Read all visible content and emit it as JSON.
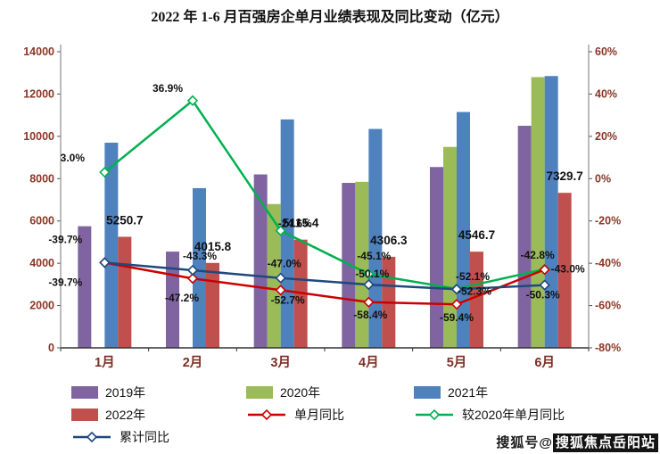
{
  "chart_data": {
    "type": "bar",
    "title": "2022 年 1-6 月百强房企单月业绩表现及同比变动（亿元）",
    "categories": [
      "1月",
      "2月",
      "3月",
      "4月",
      "5月",
      "6月"
    ],
    "bar_series": [
      {
        "name": "2019年",
        "color": "#8064A2",
        "values": [
          5750,
          4550,
          8200,
          7800,
          8550,
          10500
        ]
      },
      {
        "name": "2020年",
        "color": "#9BBB59",
        "values": [
          null,
          null,
          6800,
          7850,
          9500,
          12800
        ]
      },
      {
        "name": "2021年",
        "color": "#4F81BD",
        "values": [
          9700,
          7550,
          10800,
          10350,
          11150,
          12850
        ]
      },
      {
        "name": "2022年",
        "color": "#C0504D",
        "values": [
          5250.7,
          4015.8,
          5115.4,
          4306.3,
          4546.7,
          7329.7
        ],
        "labeled": true
      }
    ],
    "line_series": [
      {
        "name": "单月同比",
        "color": "#CC0000",
        "values": [
          -39.7,
          -47.2,
          -52.7,
          -58.4,
          -59.4,
          -43.0
        ]
      },
      {
        "name": "较2020年单月同比",
        "color": "#00B050",
        "values": [
          3.0,
          36.9,
          -24.6,
          -45.1,
          -52.1,
          -42.8
        ]
      },
      {
        "name": "累计同比",
        "color": "#1F497D",
        "values": [
          -39.7,
          -43.3,
          -47.0,
          -50.1,
          -52.3,
          -50.3
        ]
      }
    ],
    "left_axis": {
      "min": 0,
      "max": 14000,
      "step": 2000,
      "tick_labels": [
        "0",
        "2000",
        "4000",
        "6000",
        "8000",
        "10000",
        "12000",
        "14000"
      ]
    },
    "right_axis": {
      "min": -80,
      "max": 60,
      "step": 20,
      "tick_labels": [
        "-80%",
        "-60%",
        "-40%",
        "-20%",
        "0%",
        "20%",
        "40%",
        "60%"
      ]
    },
    "legend_position": "bottom",
    "grid": false
  },
  "watermark": {
    "prefix": "搜狐号@",
    "badge": "搜狐焦点岳阳站"
  }
}
